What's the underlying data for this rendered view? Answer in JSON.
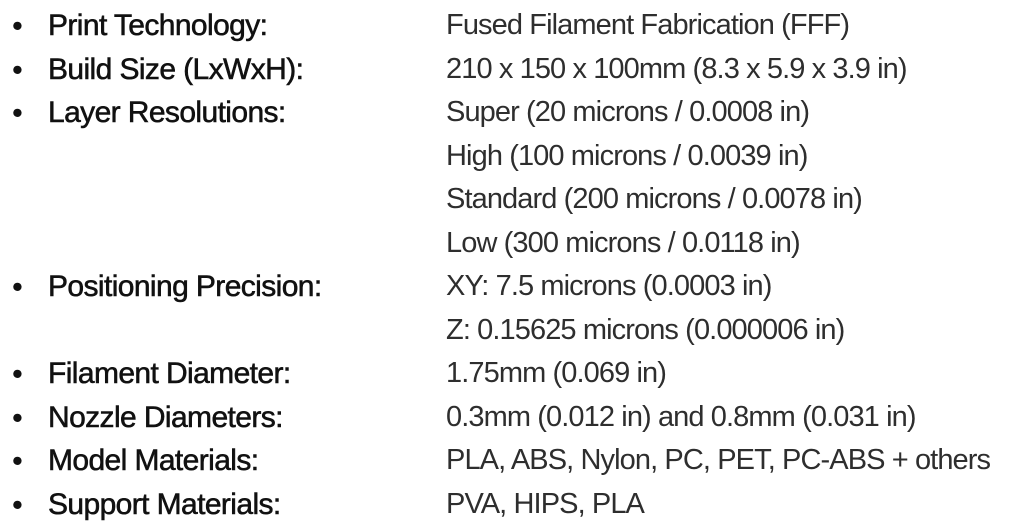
{
  "bullet_symbol": "•",
  "specs": [
    {
      "label": "Print Technology:",
      "values": [
        "Fused Filament Fabrication (FFF)"
      ]
    },
    {
      "label": "Build Size (LxWxH):",
      "values": [
        "210 x 150 x 100mm (8.3 x 5.9 x 3.9 in)"
      ]
    },
    {
      "label": "Layer Resolutions:",
      "values": [
        "Super (20 microns / 0.0008 in)",
        "High (100 microns / 0.0039 in)",
        "Standard (200 microns / 0.0078 in)",
        "Low (300 microns / 0.0118 in)"
      ]
    },
    {
      "label": "Positioning Precision:",
      "values": [
        "XY: 7.5 microns (0.0003 in)",
        "Z: 0.15625 microns (0.000006 in)"
      ]
    },
    {
      "label": "Filament Diameter:",
      "values": [
        "1.75mm (0.069 in)"
      ]
    },
    {
      "label": "Nozzle Diameters:",
      "values": [
        "0.3mm (0.012 in) and 0.8mm (0.031 in)"
      ]
    },
    {
      "label": "Model Materials:",
      "values": [
        "PLA, ABS, Nylon, PC, PET, PC-ABS + others"
      ]
    },
    {
      "label": "Support Materials:",
      "values": [
        "PVA, HIPS, PLA"
      ]
    }
  ]
}
